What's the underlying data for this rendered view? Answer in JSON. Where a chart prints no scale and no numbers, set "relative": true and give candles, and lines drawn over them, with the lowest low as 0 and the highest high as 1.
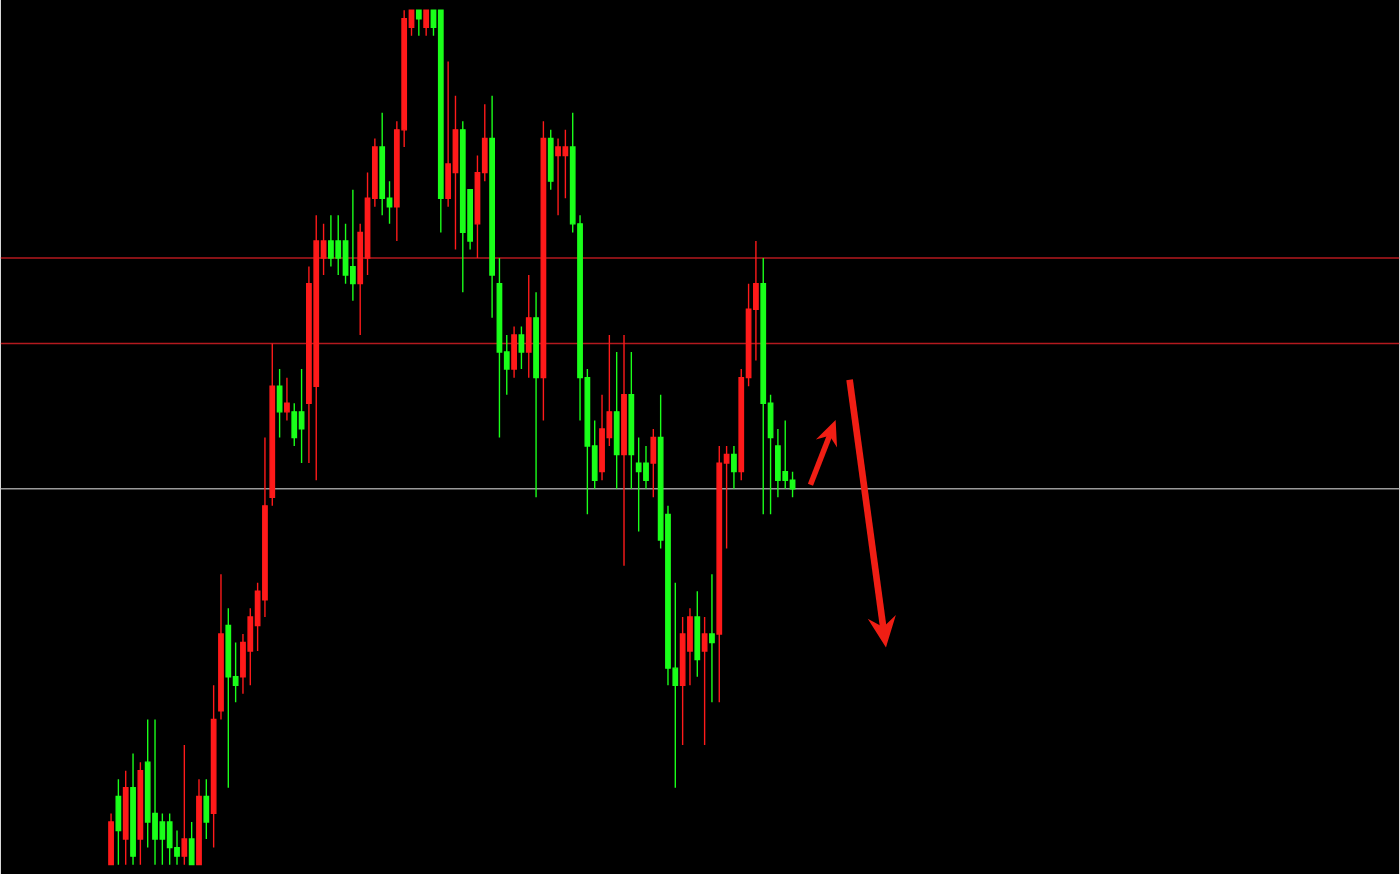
{
  "chart_data": {
    "type": "candlestick",
    "relative": true,
    "categories": [
      null,
      null,
      null,
      null,
      null,
      null,
      null,
      null,
      null,
      null,
      null,
      null,
      null,
      null,
      null,
      null,
      null,
      null,
      null,
      null,
      null,
      null,
      null,
      null,
      null,
      null,
      null,
      null,
      null,
      null,
      null,
      null,
      null,
      null,
      null,
      null,
      null,
      null,
      null,
      null,
      null,
      null,
      null,
      null,
      null,
      null,
      null,
      null,
      null,
      null,
      null,
      null,
      null,
      null,
      null,
      null,
      null,
      null,
      null,
      null,
      null,
      null,
      null,
      null,
      null,
      null,
      null,
      null,
      null,
      null,
      null,
      null,
      null,
      null,
      null,
      null,
      null,
      null,
      null,
      null,
      null,
      null,
      null,
      null,
      null,
      null,
      null,
      null,
      null,
      null,
      null,
      null,
      null,
      null
    ],
    "ohlc": [
      [
        0,
        0.06,
        0,
        0.05
      ],
      [
        0.08,
        0.1,
        0,
        0.04
      ],
      [
        0.03,
        0.11,
        0,
        0.09
      ],
      [
        0.09,
        0.13,
        0,
        0.01
      ],
      [
        0.03,
        0.12,
        0,
        0.11
      ],
      [
        0.12,
        0.17,
        0.02,
        0.05
      ],
      [
        0.06,
        0.17,
        0,
        0.03
      ],
      [
        0.05,
        0.06,
        0,
        0.03
      ],
      [
        0.05,
        0.06,
        0,
        0.02
      ],
      [
        0.02,
        0.04,
        0,
        0.01
      ],
      [
        0.01,
        0.14,
        0,
        0.03
      ],
      [
        0.03,
        0.05,
        0,
        0
      ],
      [
        0,
        0.1,
        0,
        0.08
      ],
      [
        0.08,
        0.1,
        0.03,
        0.05
      ],
      [
        0.06,
        0.21,
        0.02,
        0.17
      ],
      [
        0.18,
        0.34,
        0.17,
        0.27
      ],
      [
        0.28,
        0.3,
        0.09,
        0.22
      ],
      [
        0.22,
        0.26,
        0.19,
        0.21
      ],
      [
        0.22,
        0.27,
        0.2,
        0.26
      ],
      [
        0.25,
        0.3,
        0.21,
        0.29
      ],
      [
        0.28,
        0.33,
        0.25,
        0.32
      ],
      [
        0.31,
        0.5,
        0.29,
        0.42
      ],
      [
        0.43,
        0.61,
        0.42,
        0.56
      ],
      [
        0.56,
        0.58,
        0.5,
        0.53
      ],
      [
        0.53,
        0.57,
        0.52,
        0.54
      ],
      [
        0.53,
        0.54,
        0.49,
        0.5
      ],
      [
        0.53,
        0.58,
        0.47,
        0.51
      ],
      [
        0.54,
        0.7,
        0.47,
        0.68
      ],
      [
        0.56,
        0.76,
        0.45,
        0.73
      ],
      [
        0.71,
        0.75,
        0.69,
        0.73
      ],
      [
        0.73,
        0.76,
        0.7,
        0.71
      ],
      [
        0.73,
        0.76,
        0.69,
        0.71
      ],
      [
        0.73,
        0.75,
        0.68,
        0.69
      ],
      [
        0.7,
        0.79,
        0.66,
        0.68
      ],
      [
        0.68,
        0.75,
        0.62,
        0.74
      ],
      [
        0.71,
        0.81,
        0.69,
        0.78
      ],
      [
        0.78,
        0.85,
        0.77,
        0.84
      ],
      [
        0.84,
        0.88,
        0.76,
        0.78
      ],
      [
        0.78,
        0.8,
        0.75,
        0.77
      ],
      [
        0.77,
        0.87,
        0.73,
        0.86
      ],
      [
        0.86,
        1,
        0.84,
        0.99
      ],
      [
        0.98,
        1,
        0.97,
        1
      ],
      [
        1,
        1,
        0.97,
        0.99
      ],
      [
        0.98,
        1,
        0.97,
        1
      ],
      [
        1,
        1,
        0.97,
        0.98
      ],
      [
        1,
        1,
        0.74,
        0.78
      ],
      [
        0.78,
        0.94,
        0.77,
        0.82
      ],
      [
        0.81,
        0.9,
        0.72,
        0.86
      ],
      [
        0.86,
        0.87,
        0.67,
        0.74
      ],
      [
        0.79,
        0.79,
        0.72,
        0.73
      ],
      [
        0.75,
        0.83,
        0.71,
        0.81
      ],
      [
        0.81,
        0.89,
        0.8,
        0.85
      ],
      [
        0.85,
        0.9,
        0.64,
        0.69
      ],
      [
        0.68,
        0.71,
        0.5,
        0.6
      ],
      [
        0.6,
        0.62,
        0.55,
        0.58
      ],
      [
        0.58,
        0.63,
        0.57,
        0.62
      ],
      [
        0.62,
        0.63,
        0.58,
        0.6
      ],
      [
        0.6,
        0.69,
        0.57,
        0.64
      ],
      [
        0.64,
        0.67,
        0.43,
        0.57
      ],
      [
        0.57,
        0.87,
        0.52,
        0.85
      ],
      [
        0.85,
        0.86,
        0.79,
        0.8
      ],
      [
        0.83,
        0.85,
        0.76,
        0.84
      ],
      [
        0.83,
        0.86,
        0.78,
        0.84
      ],
      [
        0.84,
        0.88,
        0.74,
        0.75
      ],
      [
        0.75,
        0.76,
        0.52,
        0.57
      ],
      [
        0.57,
        0.58,
        0.41,
        0.49
      ],
      [
        0.49,
        0.52,
        0.44,
        0.45
      ],
      [
        0.46,
        0.55,
        0.45,
        0.51
      ],
      [
        0.5,
        0.62,
        0.49,
        0.53
      ],
      [
        0.53,
        0.6,
        0.44,
        0.48
      ],
      [
        0.48,
        0.62,
        0.35,
        0.55
      ],
      [
        0.55,
        0.6,
        0.44,
        0.48
      ],
      [
        0.47,
        0.5,
        0.39,
        0.46
      ],
      [
        0.47,
        0.49,
        0.44,
        0.45
      ],
      [
        0.47,
        0.51,
        0.43,
        0.5
      ],
      [
        0.5,
        0.55,
        0.37,
        0.38
      ],
      [
        0.41,
        0.42,
        0.21,
        0.23
      ],
      [
        0.23,
        0.33,
        0.09,
        0.21
      ],
      [
        0.21,
        0.29,
        0.14,
        0.27
      ],
      [
        0.25,
        0.3,
        0.21,
        0.29
      ],
      [
        0.29,
        0.32,
        0.22,
        0.24
      ],
      [
        0.25,
        0.29,
        0.14,
        0.27
      ],
      [
        0.27,
        0.34,
        0.19,
        0.26
      ],
      [
        0.27,
        0.49,
        0.19,
        0.47
      ],
      [
        0.47,
        0.49,
        0.37,
        0.48
      ],
      [
        0.48,
        0.49,
        0.44,
        0.46
      ],
      [
        0.46,
        0.58,
        0.45,
        0.57
      ],
      [
        0.57,
        0.68,
        0.56,
        0.65
      ],
      [
        0.65,
        0.73,
        0.59,
        0.68
      ],
      [
        0.68,
        0.71,
        0.41,
        0.54
      ],
      [
        0.54,
        0.55,
        0.41,
        0.5
      ],
      [
        0.49,
        0.51,
        0.43,
        0.45
      ],
      [
        0.46,
        0.52,
        0.44,
        0.45
      ],
      [
        0.45,
        0.46,
        0.43,
        0.44
      ]
    ],
    "colors": [
      "#ff1a1a",
      "#1aff1a",
      "#ff1a1a",
      "#1aff1a",
      "#ff1a1a",
      "#1aff1a",
      "#1aff1a",
      "#1aff1a",
      "#1aff1a",
      "#1aff1a",
      "#ff1a1a",
      "#1aff1a",
      "#ff1a1a",
      "#1aff1a",
      "#ff1a1a",
      "#ff1a1a",
      "#1aff1a",
      "#1aff1a",
      "#ff1a1a",
      "#ff1a1a",
      "#ff1a1a",
      "#ff1a1a",
      "#ff1a1a",
      "#1aff1a",
      "#ff1a1a",
      "#1aff1a",
      "#1aff1a",
      "#ff1a1a",
      "#ff1a1a",
      "#ff1a1a",
      "#1aff1a",
      "#1aff1a",
      "#1aff1a",
      "#1aff1a",
      "#ff1a1a",
      "#ff1a1a",
      "#ff1a1a",
      "#1aff1a",
      "#1aff1a",
      "#ff1a1a",
      "#ff1a1a",
      "#ff1a1a",
      "#1aff1a",
      "#ff1a1a",
      "#1aff1a",
      "#1aff1a",
      "#ff1a1a",
      "#ff1a1a",
      "#1aff1a",
      "#1aff1a",
      "#ff1a1a",
      "#ff1a1a",
      "#1aff1a",
      "#1aff1a",
      "#1aff1a",
      "#ff1a1a",
      "#1aff1a",
      "#ff1a1a",
      "#1aff1a",
      "#ff1a1a",
      "#1aff1a",
      "#ff1a1a",
      "#ff1a1a",
      "#1aff1a",
      "#1aff1a",
      "#1aff1a",
      "#1aff1a",
      "#ff1a1a",
      "#ff1a1a",
      "#1aff1a",
      "#ff1a1a",
      "#1aff1a",
      "#1aff1a",
      "#1aff1a",
      "#ff1a1a",
      "#1aff1a",
      "#1aff1a",
      "#1aff1a",
      "#ff1a1a",
      "#ff1a1a",
      "#1aff1a",
      "#ff1a1a",
      "#1aff1a",
      "#ff1a1a",
      "#ff1a1a",
      "#1aff1a",
      "#ff1a1a",
      "#ff1a1a",
      "#ff1a1a",
      "#1aff1a",
      "#1aff1a",
      "#1aff1a",
      "#1aff1a",
      "#1aff1a"
    ],
    "ref_lines": [
      {
        "axis": "y",
        "value": 0.71,
        "color": "#b3191e"
      },
      {
        "axis": "y",
        "value": 0.61,
        "color": "#b3191e"
      },
      {
        "axis": "y",
        "value": 0.44,
        "color": "#9a9a9a"
      }
    ]
  }
}
